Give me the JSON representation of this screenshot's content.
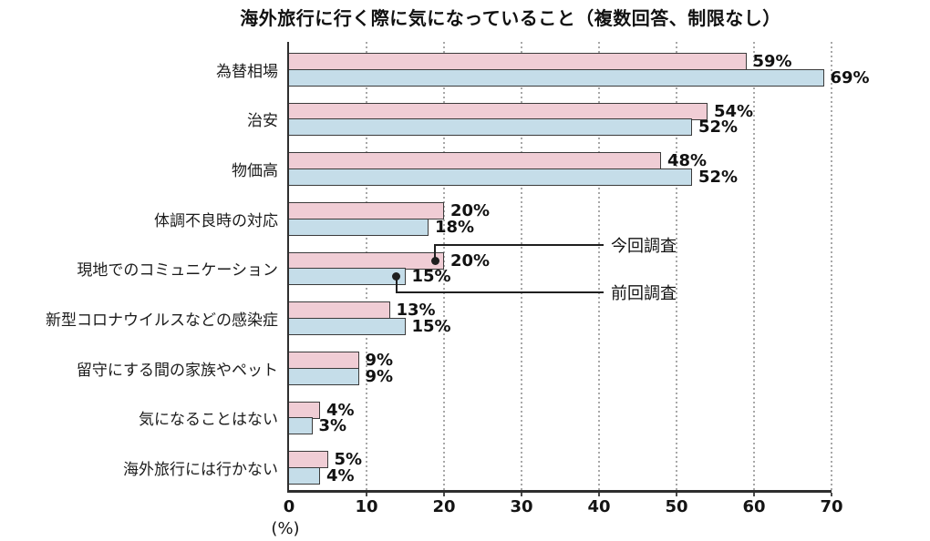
{
  "title": "海外旅行に行く際に気になっていること（複数回答、制限なし）",
  "colors": {
    "bar_current": "#f0cdd5",
    "bar_previous": "#c5dde9",
    "bar_border": "#3b3b3b",
    "axis": "#2e2e2e",
    "gridline": "#a8a8a8",
    "tick": "#4a4a4a",
    "text": "#111111",
    "callout": "#1f1f1f"
  },
  "chart_data": {
    "type": "bar",
    "orientation": "horizontal",
    "title": "海外旅行に行く際に気になっていること（複数回答、制限なし）",
    "categories": [
      "為替相場",
      "治安",
      "物価高",
      "体調不良時の対応",
      "現地でのコミュニケーション",
      "新型コロナウイルスなどの感染症",
      "留守にする間の家族やペット",
      "気になることはない",
      "海外旅行には行かない"
    ],
    "series": [
      {
        "name": "今回調査",
        "color_key": "bar_current",
        "values": [
          59,
          54,
          48,
          20,
          20,
          13,
          9,
          4,
          5
        ]
      },
      {
        "name": "前回調査",
        "color_key": "bar_previous",
        "values": [
          69,
          52,
          52,
          18,
          15,
          15,
          9,
          3,
          4
        ]
      }
    ],
    "value_suffix": "%",
    "xlim": [
      0,
      70
    ],
    "xticks": [
      0,
      10,
      20,
      30,
      40,
      50,
      60,
      70
    ],
    "xlabel": "(%)",
    "grid": "vertical-dotted",
    "legend": {
      "style": "callout",
      "category_index": 4,
      "entries": [
        "今回調査",
        "前回調査"
      ]
    }
  }
}
